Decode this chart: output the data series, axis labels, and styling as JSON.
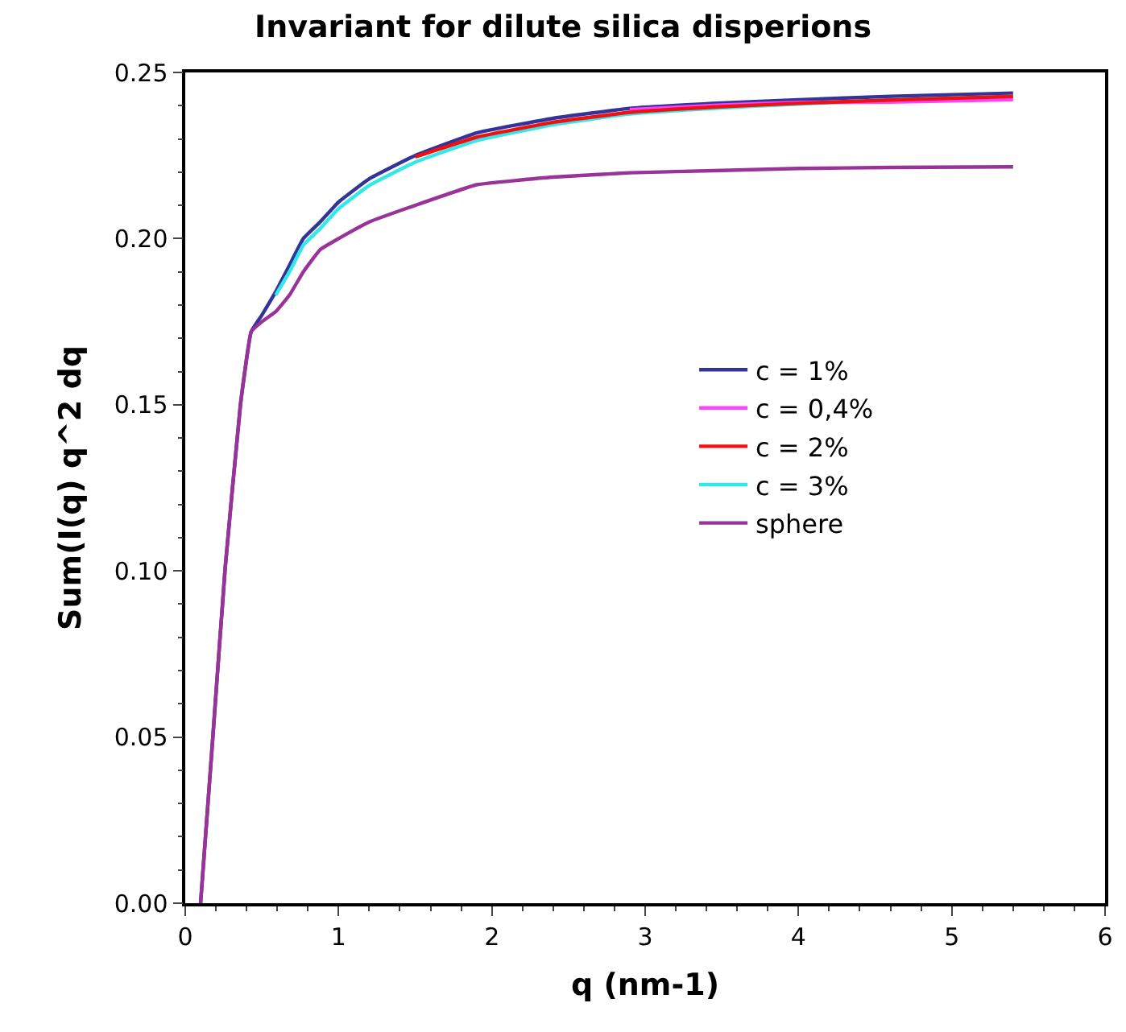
{
  "chart_data": {
    "type": "line",
    "title": "Invariant for dilute silica disperions",
    "xlabel": "q (nm-1)",
    "ylabel": "Sum(I(q) q^2 dq",
    "x": [
      0.1,
      0.18,
      0.26,
      0.36,
      0.43,
      0.5,
      0.59,
      0.68,
      0.77,
      0.88,
      1.0,
      1.2,
      1.5,
      1.9,
      2.4,
      2.9,
      3.5,
      4.0,
      4.6,
      5.4
    ],
    "series": [
      {
        "name": "c = 1%",
        "color": "#333399",
        "values": [
          0.0,
          0.05,
          0.1006,
          0.15,
          0.172,
          0.177,
          0.184,
          0.192,
          0.2,
          0.205,
          0.211,
          0.218,
          0.225,
          0.2318,
          0.2362,
          0.2392,
          0.2408,
          0.2418,
          0.2428,
          0.2438
        ]
      },
      {
        "name": "c = 0,4%",
        "color": "#ff44ff",
        "values": [
          null,
          null,
          null,
          null,
          null,
          null,
          null,
          null,
          null,
          null,
          null,
          null,
          null,
          null,
          null,
          0.2388,
          0.2402,
          0.241,
          0.2411,
          0.2418
        ]
      },
      {
        "name": "c = 2%",
        "color": "#ee1111",
        "values": [
          null,
          null,
          null,
          null,
          null,
          null,
          null,
          null,
          null,
          null,
          null,
          null,
          0.2246,
          0.2305,
          0.235,
          0.238,
          0.2397,
          0.2407,
          0.2417,
          0.2428
        ]
      },
      {
        "name": "c = 3%",
        "color": "#33e8e8",
        "values": [
          null,
          null,
          null,
          null,
          null,
          null,
          0.183,
          0.19,
          0.198,
          0.203,
          0.209,
          0.216,
          0.223,
          0.2295,
          0.2343,
          0.2375,
          0.2393,
          0.2405,
          0.2418,
          0.2428
        ]
      },
      {
        "name": "sphere",
        "color": "#993399",
        "values": [
          0.0,
          0.05,
          0.1006,
          0.15,
          0.172,
          0.175,
          0.178,
          0.183,
          0.19,
          0.1967,
          0.2,
          0.205,
          0.21,
          0.2162,
          0.2185,
          0.2198,
          0.2205,
          0.2211,
          0.2214,
          0.2216
        ]
      }
    ],
    "xlim": [
      0,
      6
    ],
    "xticks": [
      0,
      1,
      2,
      3,
      4,
      5,
      6
    ],
    "ylim": [
      0,
      0.25
    ],
    "yticks": [
      {
        "value": 0,
        "label": "0.00"
      },
      {
        "value": 0.05,
        "label": "0.05"
      },
      {
        "value": 0.1,
        "label": "0.10"
      },
      {
        "value": 0.15,
        "label": "0.15"
      },
      {
        "value": 0.2,
        "label": "0.20"
      },
      {
        "value": 0.25,
        "label": "0.25"
      }
    ],
    "grid": false,
    "legend": "right",
    "marker": "none",
    "line_style": "solid"
  }
}
